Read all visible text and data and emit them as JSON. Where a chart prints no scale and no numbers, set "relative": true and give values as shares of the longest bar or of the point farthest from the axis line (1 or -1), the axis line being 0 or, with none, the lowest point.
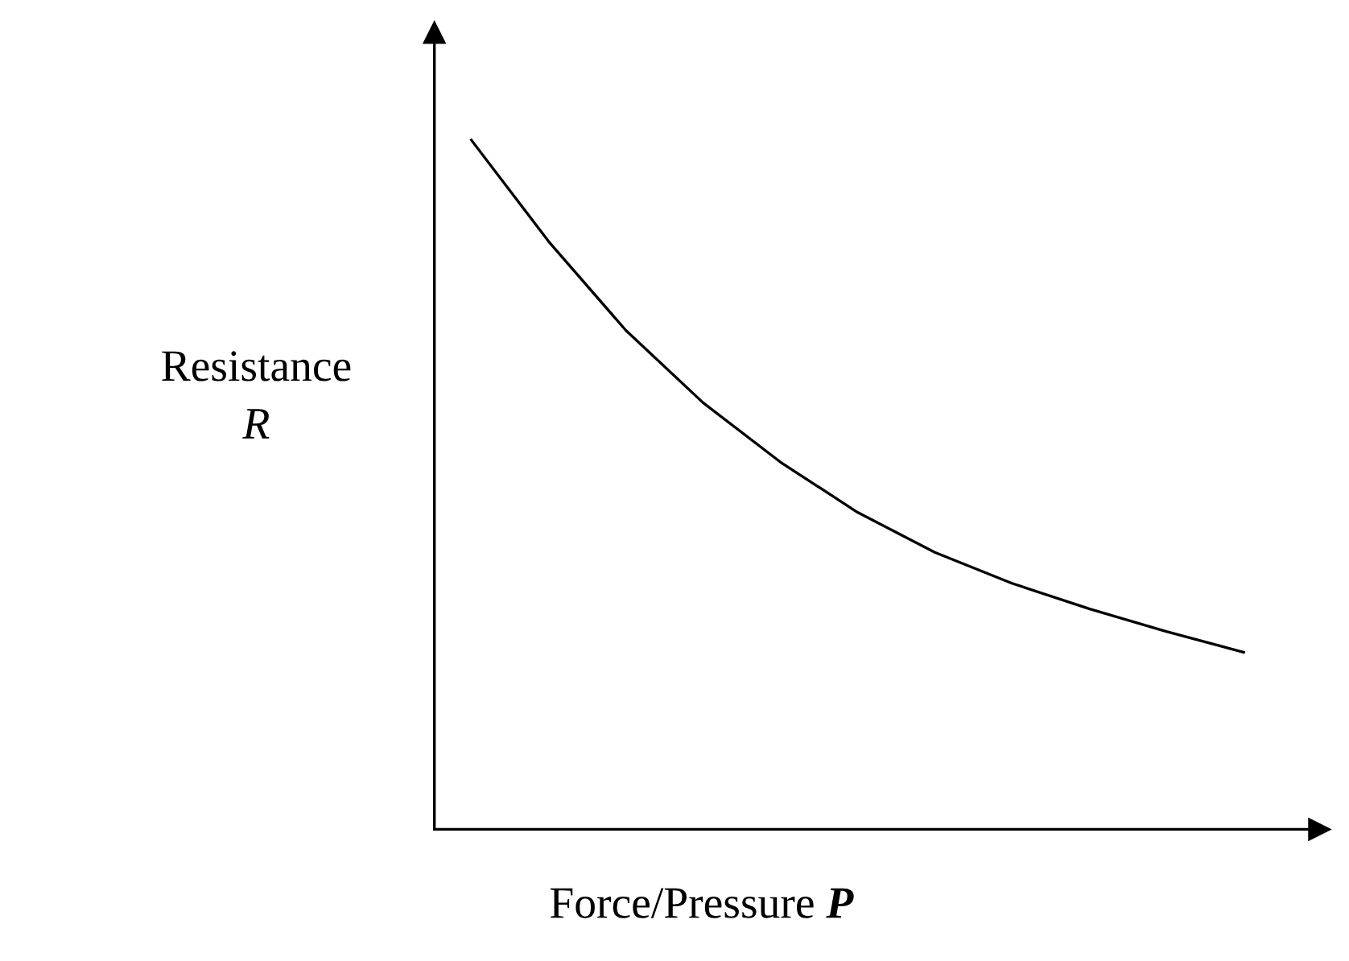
{
  "chart_data": {
    "type": "line",
    "relative": true,
    "xlabel": "Force/Pressure P",
    "ylabel": "Resistance R",
    "categories": [
      null,
      null,
      null,
      null,
      null,
      null,
      null,
      null,
      null,
      null,
      null
    ],
    "series": [
      {
        "color": "#000000",
        "values": [
          1,
          0.853,
          0.724,
          0.619,
          0.533,
          0.46,
          0.402,
          0.357,
          0.32,
          0.287,
          0.257
        ]
      }
    ],
    "marker": "none",
    "line_style": "solid",
    "legend": false
  }
}
